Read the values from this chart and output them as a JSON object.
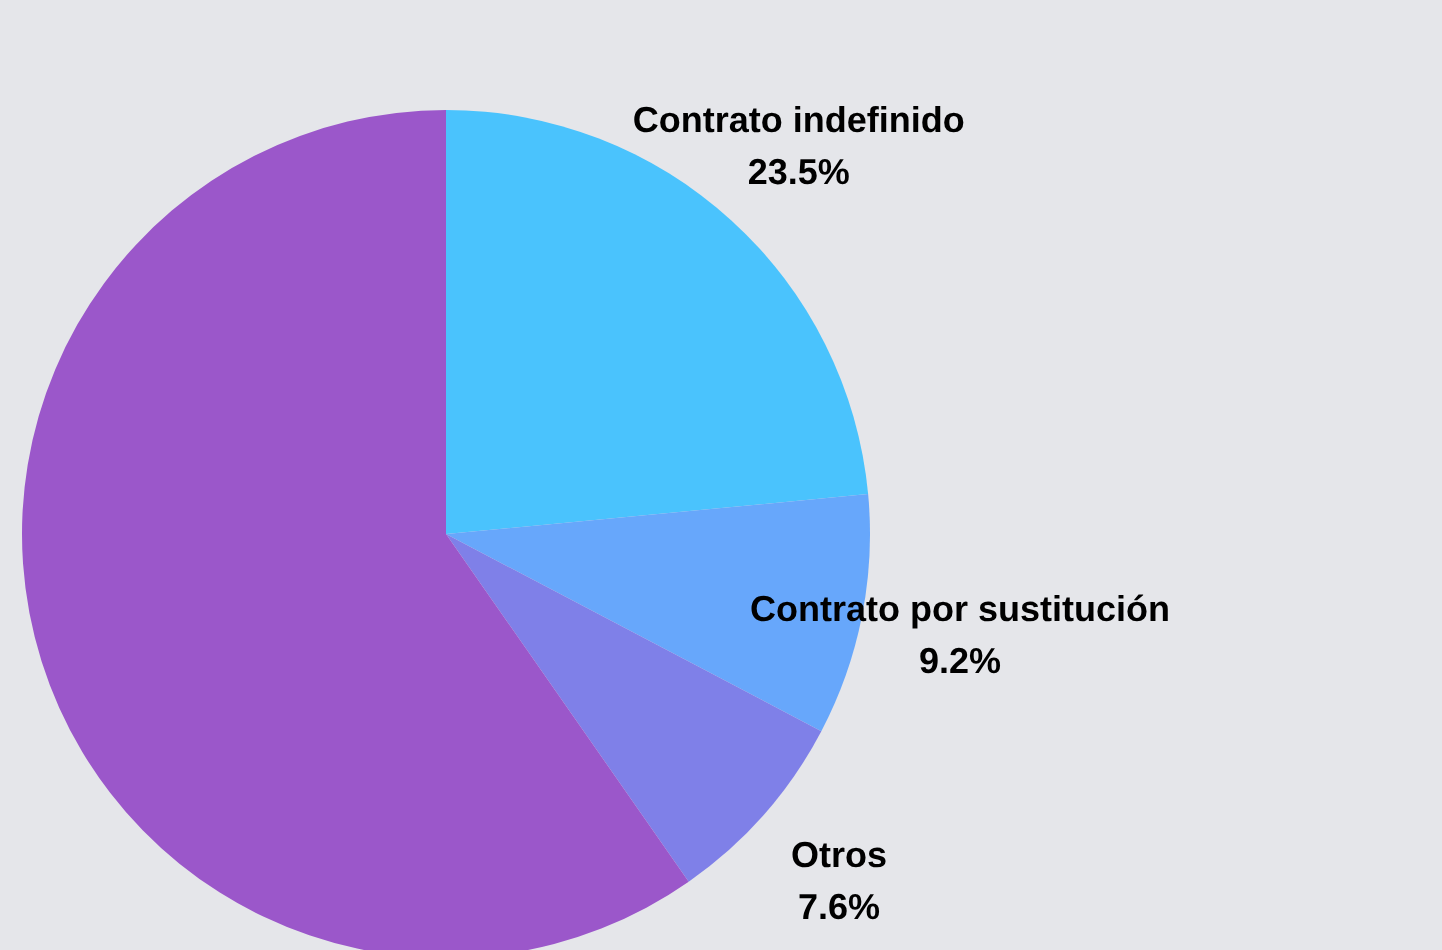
{
  "chart_data": {
    "type": "pie",
    "categories": [
      "Contrato indefinido",
      "Contrato por sustitución",
      "Otros",
      null
    ],
    "values": [
      23.5,
      9.2,
      7.6,
      59.7
    ],
    "value_labels": [
      "23.5%",
      "9.2%",
      "7.6%",
      null
    ],
    "colors": [
      "#4ac3fd",
      "#67a7fb",
      "#7f80e8",
      "#9b57ca"
    ]
  }
}
